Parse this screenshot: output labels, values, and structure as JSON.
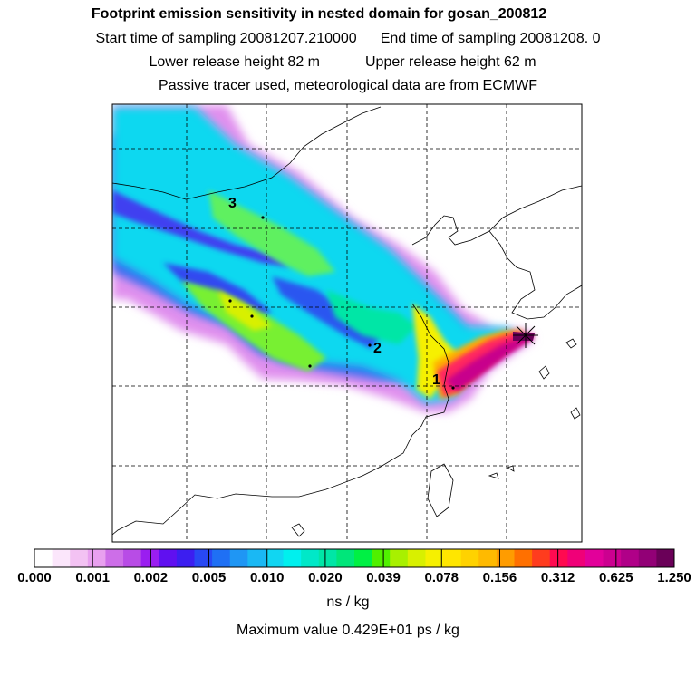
{
  "header": {
    "title": "Footprint emission sensitivity in nested domain for gosan_200812",
    "start_time": "Start time of sampling 20081207.210000",
    "end_time": "End time of sampling 20081208.     0",
    "lower_height": "Lower release height   82 m",
    "upper_height": "Upper release height   62 m",
    "tracer_info": "Passive tracer used, meteorological data are from ECMWF"
  },
  "map": {
    "markers": [
      {
        "label": "1"
      },
      {
        "label": "2"
      },
      {
        "label": "3"
      }
    ],
    "receptor_symbol": "star-icon",
    "grid": true
  },
  "colorbar": {
    "labels": [
      "0.000",
      "0.001",
      "0.002",
      "0.005",
      "0.010",
      "0.020",
      "0.039",
      "0.078",
      "0.156",
      "0.312",
      "0.625",
      "1.250"
    ],
    "colors": [
      "#ffffff",
      "#fbe6fb",
      "#f3c2f3",
      "#e8a0ef",
      "#cd6ee8",
      "#b84ce6",
      "#9a1ef0",
      "#6010f0",
      "#3c1ef0",
      "#2848f4",
      "#1f70f4",
      "#1f96f4",
      "#1ab8f4",
      "#11d6f2",
      "#00f0ee",
      "#00e8c8",
      "#00e6a6",
      "#00e67a",
      "#00f044",
      "#50f000",
      "#a8f000",
      "#d8f000",
      "#f6f000",
      "#ffe600",
      "#ffd200",
      "#ffba00",
      "#ff9c00",
      "#ff7000",
      "#ff3c1e",
      "#ff0a50",
      "#f00078",
      "#e2009a",
      "#cc0090",
      "#b00088",
      "#920076",
      "#6a0058"
    ],
    "units": "ns / kg"
  },
  "maximum": "Maximum value  0.429E+01 ps / kg"
}
